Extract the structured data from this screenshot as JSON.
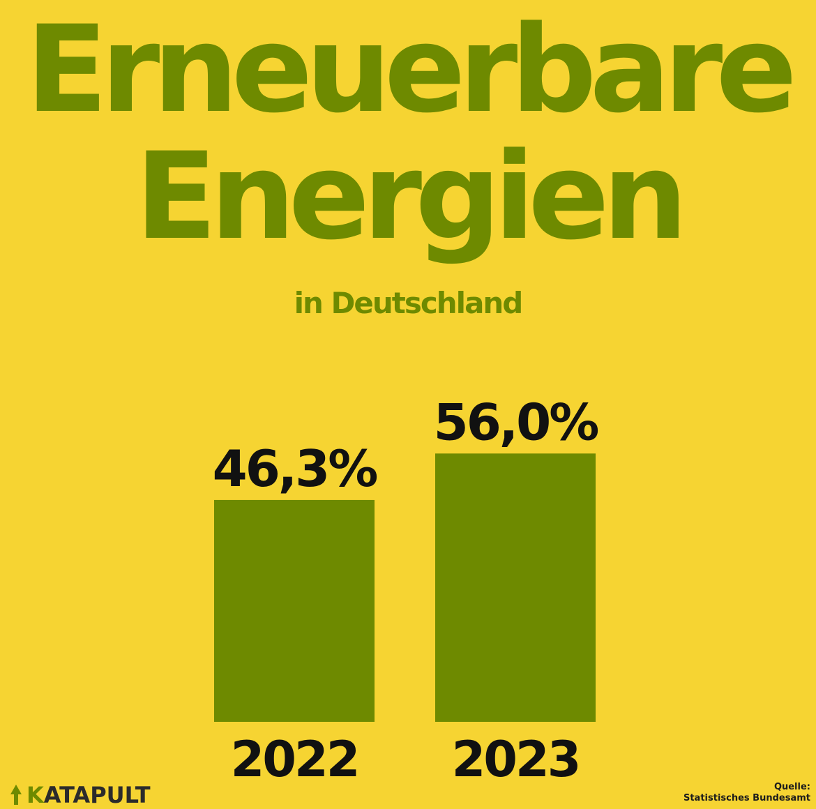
{
  "title_line1": "Erneuerbare",
  "title_line2": "Energien",
  "subtitle": "in Deutschland",
  "colors": {
    "background": "#f6d432",
    "bar": "#6e8a00",
    "title": "#6e8a00",
    "text": "#111111"
  },
  "chart_data": {
    "type": "bar",
    "categories": [
      "2022",
      "2023"
    ],
    "values": [
      46.3,
      56.0
    ],
    "value_labels": [
      "46,3%",
      "56,0%"
    ],
    "title": "Erneuerbare Energien",
    "subtitle": "in Deutschland",
    "unit": "%",
    "grid": false,
    "legend": "none"
  },
  "logo": {
    "icon": "tree-icon",
    "k": "K",
    "rest": "ATAPULT"
  },
  "source": {
    "label": "Quelle:",
    "name": "Statistisches Bundesamt"
  }
}
